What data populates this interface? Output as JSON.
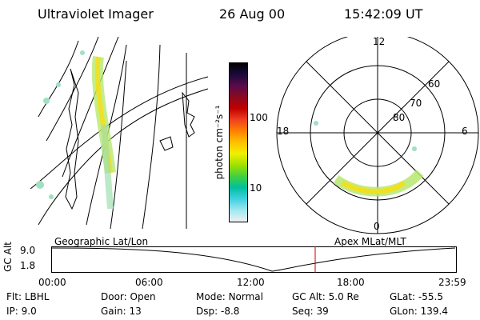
{
  "header": {
    "instrument": "Ultraviolet Imager",
    "date": "26 Aug 00",
    "time": "15:42:09 UT"
  },
  "colorbar": {
    "unit_label": "photon cm⁻²s⁻¹",
    "ticks": [
      "100",
      "10"
    ],
    "colors": [
      "#000000",
      "#1a0a3a",
      "#5a0a4a",
      "#8a0a20",
      "#c00000",
      "#f04020",
      "#ff8000",
      "#ffc000",
      "#f0f000",
      "#a0e000",
      "#40d040",
      "#00c0a0",
      "#40d0e0",
      "#a0e8f0",
      "#f0f0f0"
    ]
  },
  "polar_plot": {
    "mlt_labels": {
      "top": "12",
      "left": "18",
      "right": "6",
      "bottom": "0"
    },
    "lat_labels": [
      "60",
      "70",
      "80"
    ]
  },
  "timeline": {
    "y_axis_label": "GC Alt",
    "y_ticks": [
      "9.0",
      "1.8"
    ],
    "left_caption": "Geographic Lat/Lon",
    "right_caption": "Apex MLat/MLT",
    "x_ticks": [
      "00:00",
      "06:00",
      "12:00",
      "18:00",
      "23:59"
    ],
    "current_time_color": "#c00000"
  },
  "info_rows": [
    [
      {
        "label": "Flt:",
        "value": "LBHL"
      },
      {
        "label": "Door:",
        "value": "Open"
      },
      {
        "label": "Mode:",
        "value": "Normal"
      },
      {
        "label": "GC Alt:",
        "value": "5.0 Re"
      },
      {
        "label": "GLat:",
        "value": "-55.5"
      }
    ],
    [
      {
        "label": "IP:",
        "value": "9.0"
      },
      {
        "label": "Gain:",
        "value": "13"
      },
      {
        "label": "Dsp:",
        "value": "-8.8"
      },
      {
        "label": "Seq:",
        "value": "39"
      },
      {
        "label": "GLon:",
        "value": "139.4"
      }
    ]
  ]
}
